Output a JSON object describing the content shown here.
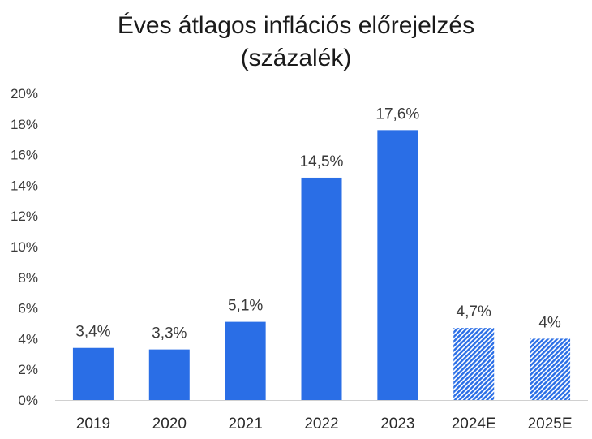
{
  "chart_data": {
    "type": "bar",
    "title_line1": "Éves átlagos inflációs előrejelzés",
    "title_line2": "(százalék)",
    "categories": [
      "2019",
      "2020",
      "2021",
      "2022",
      "2023",
      "2024E",
      "2025E"
    ],
    "values": [
      3.4,
      3.3,
      5.1,
      14.5,
      17.6,
      4.7,
      4.0
    ],
    "value_labels": [
      "3,4%",
      "3,3%",
      "5,1%",
      "14,5%",
      "17,6%",
      "4,7%",
      "4%"
    ],
    "estimate": [
      false,
      false,
      false,
      false,
      false,
      true,
      true
    ],
    "ylim": [
      0,
      20
    ],
    "yticks": [
      0,
      2,
      4,
      6,
      8,
      10,
      12,
      14,
      16,
      18,
      20
    ],
    "ytick_labels": [
      "0%",
      "2%",
      "4%",
      "6%",
      "8%",
      "10%",
      "12%",
      "14%",
      "16%",
      "18%",
      "20%"
    ],
    "xlabel": "",
    "ylabel": "",
    "grid": false,
    "bar_color": "#2a6ee6",
    "estimate_pattern": "hatched"
  }
}
